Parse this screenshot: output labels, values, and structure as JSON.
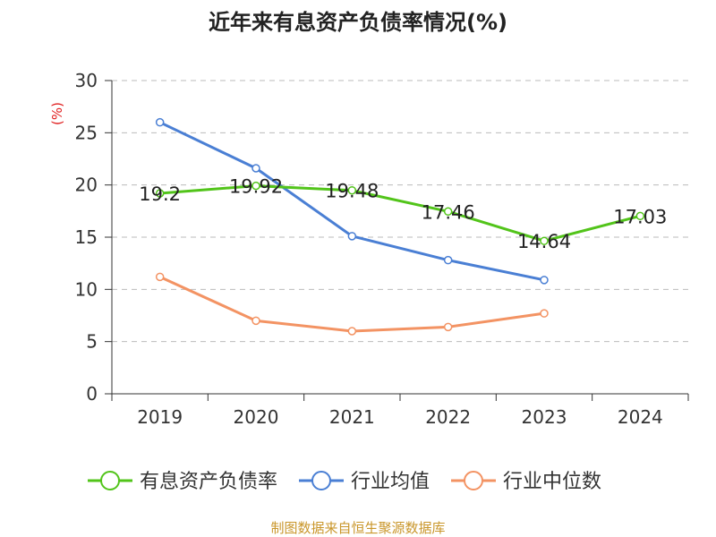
{
  "chart_data": {
    "type": "line",
    "title": "近年来有息资产负债率情况(%)",
    "ylabel": "(%)",
    "xlabel": "",
    "categories": [
      "2019",
      "2020",
      "2021",
      "2022",
      "2023",
      "2024"
    ],
    "ylim": [
      0,
      30
    ],
    "yticks": [
      0,
      5,
      10,
      15,
      20,
      25,
      30
    ],
    "grid": true,
    "legend_position": "bottom",
    "series": [
      {
        "name": "有息资产负债率",
        "color": "#52c41a",
        "values": [
          19.2,
          19.92,
          19.48,
          17.46,
          14.64,
          17.03
        ],
        "labels": [
          "19.2",
          "19.92",
          "19.48",
          "17.46",
          "14.64",
          "17.03"
        ],
        "show_labels": true
      },
      {
        "name": "行业均值",
        "color": "#4a7fd4",
        "values": [
          26.0,
          21.6,
          15.1,
          12.8,
          10.9,
          null
        ],
        "show_labels": false
      },
      {
        "name": "行业中位数",
        "color": "#f39363",
        "values": [
          11.2,
          7.0,
          6.0,
          6.4,
          7.7,
          null
        ],
        "show_labels": false
      }
    ],
    "source": "制图数据来自恒生聚源数据库"
  }
}
